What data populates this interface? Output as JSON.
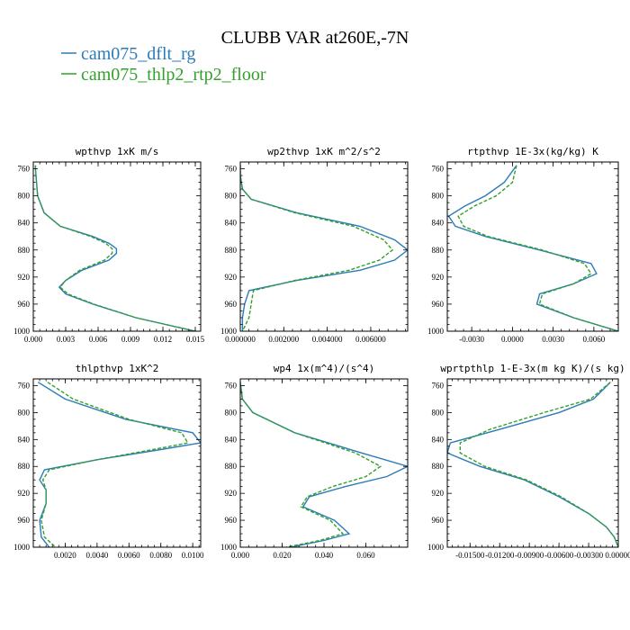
{
  "figure": {
    "title": "CLUBB VAR at260E,-7N",
    "legend": [
      {
        "label": "cam075_dflt_rg",
        "color": "#2b7bb9",
        "dash": "solid"
      },
      {
        "label": "cam075_thlp2_rtp2_floor",
        "color": "#33a02c",
        "dash": "dashed"
      }
    ]
  },
  "chart_data": [
    {
      "type": "line",
      "title": "wpthvp   1xK m/s",
      "ylabel": "",
      "ylim": [
        1000,
        750
      ],
      "y_ticks": [
        760,
        800,
        840,
        880,
        920,
        960,
        1000
      ],
      "xlim": [
        0,
        0.0155
      ],
      "x_ticks": [
        0.0,
        0.003,
        0.006,
        0.009,
        0.012,
        0.015
      ],
      "x_tick_labels": [
        "0.000",
        "0.003",
        "0.006",
        "0.009",
        "0.012",
        "0.015"
      ],
      "y": [
        755,
        760,
        780,
        800,
        825,
        845,
        860,
        870,
        878,
        885,
        895,
        910,
        925,
        935,
        945,
        960,
        980,
        1000
      ],
      "series": [
        {
          "name": "cam075_dflt_rg",
          "x": [
            0.0002,
            0.0002,
            0.0003,
            0.0004,
            0.001,
            0.0025,
            0.0055,
            0.007,
            0.0077,
            0.0077,
            0.007,
            0.0045,
            0.003,
            0.0024,
            0.003,
            0.0055,
            0.0095,
            0.015
          ]
        },
        {
          "name": "cam075_thlp2_rtp2_floor",
          "x": [
            0.0002,
            0.0002,
            0.0003,
            0.0004,
            0.001,
            0.0025,
            0.0053,
            0.0067,
            0.0073,
            0.0073,
            0.0066,
            0.0043,
            0.003,
            0.0025,
            0.0032,
            0.0056,
            0.0095,
            0.015
          ]
        }
      ]
    },
    {
      "type": "line",
      "title": "wp2thvp   1xK m^2/s^2",
      "ylabel": "",
      "ylim": [
        1000,
        750
      ],
      "y_ticks": [
        760,
        800,
        840,
        880,
        920,
        960,
        1000
      ],
      "xlim": [
        0,
        0.0077
      ],
      "x_ticks": [
        0.0,
        0.002,
        0.004,
        0.006
      ],
      "x_tick_labels": [
        "0.000000",
        "0.002000",
        "0.004000",
        "0.006000"
      ],
      "y": [
        755,
        770,
        790,
        805,
        825,
        845,
        865,
        880,
        895,
        910,
        925,
        940,
        960,
        980,
        1000
      ],
      "series": [
        {
          "name": "cam075_dflt_rg",
          "x": [
            0.0,
            0.0,
            0.0001,
            0.0005,
            0.0026,
            0.0055,
            0.0071,
            0.0077,
            0.0071,
            0.0055,
            0.0026,
            0.0004,
            0.0002,
            0.0001,
            0.0001
          ]
        },
        {
          "name": "cam075_thlp2_rtp2_floor",
          "x": [
            0.0,
            0.0,
            0.0001,
            0.0005,
            0.0025,
            0.0052,
            0.0066,
            0.007,
            0.0064,
            0.005,
            0.0025,
            0.0006,
            0.0005,
            0.0004,
            0.0001
          ]
        }
      ]
    },
    {
      "type": "line",
      "title": "rtpthvp   1E-3x(kg/kg) K",
      "ylabel": "",
      "ylim": [
        1000,
        750
      ],
      "y_ticks": [
        760,
        800,
        840,
        880,
        920,
        960,
        1000
      ],
      "xlim": [
        -0.0048,
        0.0078
      ],
      "x_ticks": [
        -0.003,
        0.0,
        0.003,
        0.006
      ],
      "x_tick_labels": [
        "-0.0030",
        "0.0000",
        "0.0030",
        "0.0060"
      ],
      "y": [
        755,
        780,
        800,
        815,
        830,
        845,
        860,
        880,
        900,
        915,
        930,
        945,
        960,
        980,
        1000
      ],
      "series": [
        {
          "name": "cam075_dflt_rg",
          "x": [
            0.0003,
            -0.0006,
            -0.002,
            -0.0035,
            -0.0047,
            -0.0042,
            -0.002,
            0.002,
            0.0058,
            0.0062,
            0.0045,
            0.002,
            0.0018,
            0.0045,
            0.0078
          ]
        },
        {
          "name": "cam075_thlp2_rtp2_floor",
          "x": [
            0.0003,
            0.0,
            -0.0012,
            -0.0028,
            -0.004,
            -0.0036,
            -0.0018,
            0.0022,
            0.0053,
            0.0058,
            0.0045,
            0.0022,
            0.002,
            0.0045,
            0.0078
          ]
        }
      ]
    },
    {
      "type": "line",
      "title": "thlpthvp   1xK^2",
      "ylabel": "",
      "ylim": [
        1000,
        750
      ],
      "y_ticks": [
        760,
        800,
        840,
        880,
        920,
        960,
        1000
      ],
      "xlim": [
        0.0,
        0.0105
      ],
      "x_ticks": [
        0.002,
        0.004,
        0.006,
        0.008,
        0.01
      ],
      "x_tick_labels": [
        "0.0020",
        "0.0040",
        "0.0060",
        "0.0080",
        "0.0100"
      ],
      "y": [
        755,
        780,
        810,
        830,
        845,
        855,
        870,
        885,
        900,
        915,
        935,
        960,
        985,
        1000
      ],
      "series": [
        {
          "name": "cam075_dflt_rg",
          "x": [
            0.0003,
            0.002,
            0.0058,
            0.01,
            0.0105,
            0.008,
            0.004,
            0.0007,
            0.0004,
            0.0008,
            0.0008,
            0.0004,
            0.0005,
            0.001
          ]
        },
        {
          "name": "cam075_thlp2_rtp2_floor",
          "x": [
            0.0009,
            0.0025,
            0.006,
            0.0093,
            0.0097,
            0.0075,
            0.004,
            0.001,
            0.0006,
            0.0008,
            0.0008,
            0.0005,
            0.0007,
            0.0014
          ]
        }
      ]
    },
    {
      "type": "line",
      "title": "wp4   1x(m^4)/(s^4)",
      "ylabel": "",
      "ylim": [
        1000,
        750
      ],
      "y_ticks": [
        760,
        800,
        840,
        880,
        920,
        960,
        1000
      ],
      "xlim": [
        0,
        0.08
      ],
      "x_ticks": [
        0.0,
        0.02,
        0.04,
        0.06
      ],
      "x_tick_labels": [
        "0.000",
        "0.020",
        "0.040",
        "0.060"
      ],
      "y": [
        755,
        780,
        800,
        830,
        860,
        880,
        895,
        910,
        925,
        940,
        960,
        980,
        990,
        1000
      ],
      "series": [
        {
          "name": "cam075_dflt_rg",
          "x": [
            0.0,
            0.001,
            0.006,
            0.026,
            0.058,
            0.08,
            0.07,
            0.05,
            0.033,
            0.03,
            0.045,
            0.052,
            0.04,
            0.024
          ]
        },
        {
          "name": "cam075_thlp2_rtp2_floor",
          "x": [
            0.0,
            0.001,
            0.006,
            0.026,
            0.055,
            0.067,
            0.06,
            0.044,
            0.032,
            0.029,
            0.043,
            0.049,
            0.038,
            0.022
          ]
        }
      ]
    },
    {
      "type": "line",
      "title": "wprtpthlp   1-E-3x(m kg K)/(s kg)",
      "ylabel": "",
      "ylim": [
        1000,
        750
      ],
      "y_ticks": [
        760,
        800,
        840,
        880,
        920,
        960,
        1000
      ],
      "xlim": [
        -0.0173,
        0.0
      ],
      "x_ticks": [
        -0.015,
        -0.012,
        -0.009,
        -0.006,
        -0.003,
        0.0
      ],
      "x_tick_labels": [
        "-0.01500",
        "-0.01200",
        "-0.00900",
        "-0.00600",
        "-0.00300",
        "0.00000"
      ],
      "y": [
        755,
        780,
        800,
        825,
        845,
        860,
        880,
        900,
        925,
        950,
        970,
        985,
        1000
      ],
      "series": [
        {
          "name": "cam075_dflt_rg",
          "x": [
            -0.0008,
            -0.0025,
            -0.006,
            -0.012,
            -0.017,
            -0.0173,
            -0.014,
            -0.0095,
            -0.006,
            -0.003,
            -0.0012,
            -0.0004,
            0.0
          ]
        },
        {
          "name": "cam075_thlp2_rtp2_floor",
          "x": [
            -0.0008,
            -0.0028,
            -0.0075,
            -0.013,
            -0.016,
            -0.016,
            -0.0135,
            -0.0093,
            -0.0058,
            -0.003,
            -0.0012,
            -0.0004,
            0.0
          ]
        }
      ]
    }
  ]
}
